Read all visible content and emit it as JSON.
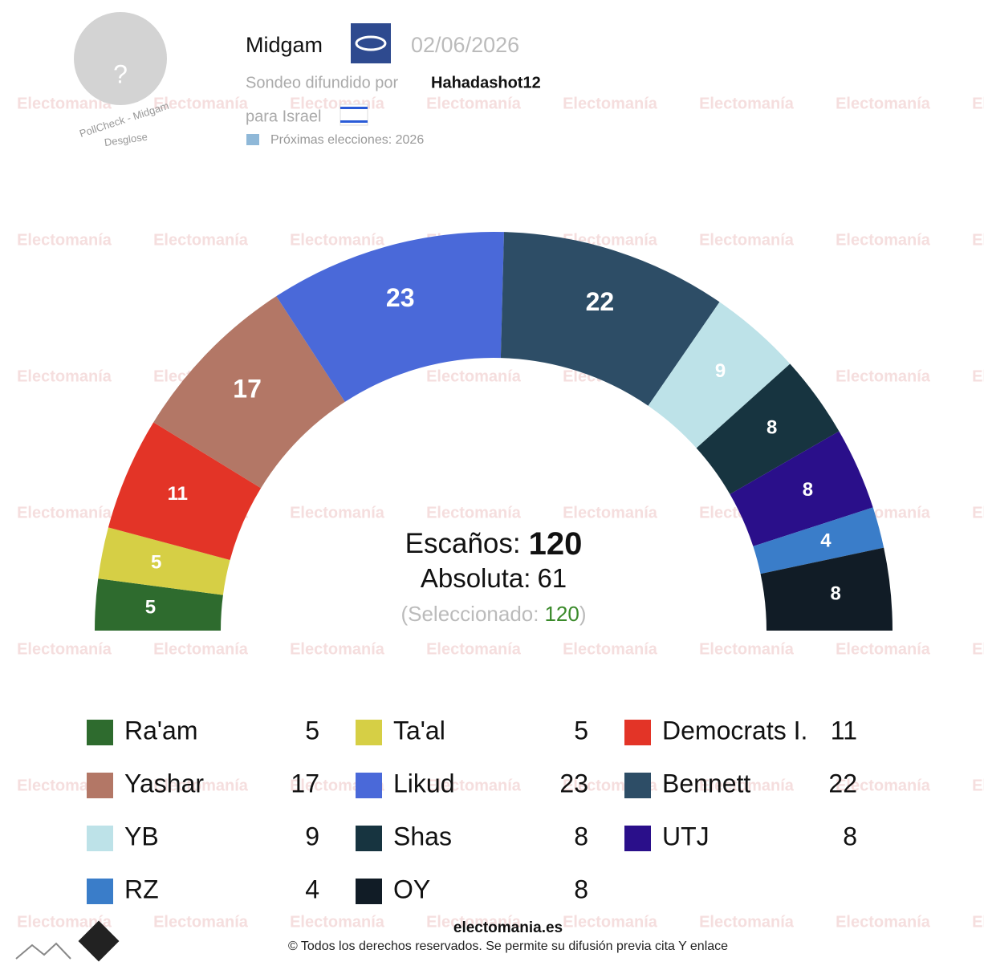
{
  "header": {
    "pollster": "Midgam",
    "date": "02/06/2026",
    "published_by_label": "Sondeo difundido por",
    "published_by": "Hahadashot12",
    "country_label": "para Israel",
    "next_elections": "Próximas elecciones: 2026",
    "avatar": "?",
    "pollcheck": "PollCheck - Midgam",
    "breakdown": "Desglose"
  },
  "watermark": "Electomanía",
  "chart_data": {
    "type": "hemicycle",
    "categories": [
      "Ra'am",
      "Ta'al",
      "Democrats I.",
      "Yashar",
      "Likud",
      "Bennett",
      "YB",
      "Shas",
      "UTJ",
      "RZ",
      "OY"
    ],
    "values": [
      5,
      5,
      11,
      17,
      23,
      22,
      9,
      8,
      8,
      4,
      8
    ],
    "colors": [
      "#2e6b2e",
      "#d6cf45",
      "#e33427",
      "#b37766",
      "#4a69d9",
      "#2d4d66",
      "#bde2e8",
      "#173440",
      "#2a0f8a",
      "#3a7dc9",
      "#111c26"
    ],
    "seats_label": "Escaños:",
    "seats_total": 120,
    "majority_label": "Absoluta:",
    "majority": 61,
    "selected_label": "(Seleccionado:",
    "selected": 120,
    "selected_close": ")"
  },
  "footer": {
    "site": "electomania.es",
    "copyright": "© Todos los derechos reservados. Se permite su difusión previa cita Y enlace"
  }
}
